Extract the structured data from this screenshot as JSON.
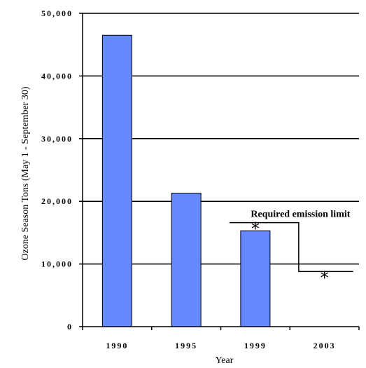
{
  "chart_data": {
    "type": "bar",
    "categories": [
      "1990",
      "1995",
      "1999",
      "2003"
    ],
    "values": [
      46500,
      21300,
      15300,
      null
    ],
    "xlabel": "Year",
    "ylabel": "Ozone Season Tons (May 1 - September 30)",
    "ylim": [
      0,
      50000
    ],
    "yticks": [
      0,
      10000,
      20000,
      30000,
      40000,
      50000
    ],
    "ytick_labels": [
      "0",
      "10,000",
      "20,000",
      "30,000",
      "40,000",
      "50,000"
    ],
    "grid": true,
    "bar_color": "#6688ff",
    "limit_line": {
      "label": "Required emission limit",
      "segments": [
        {
          "x_start": 1999,
          "x_end": 2000,
          "y": 16600
        },
        {
          "x_start": 2000,
          "x_end": 2003,
          "y": 8800
        }
      ],
      "markers": [
        {
          "category": "1999",
          "y": 16600,
          "symbol": "*"
        },
        {
          "category": "2003",
          "y": 8800,
          "symbol": "*"
        }
      ]
    }
  }
}
